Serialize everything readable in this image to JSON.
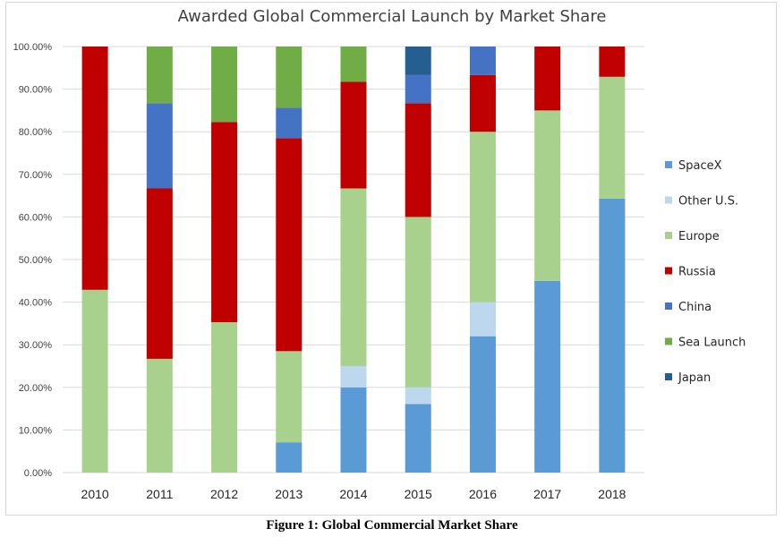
{
  "caption": "Figure 1: Global Commercial Market Share",
  "chart_data": {
    "type": "bar",
    "stacked": true,
    "title": "Awarded Global Commercial Launch by Market Share",
    "xlabel": "",
    "ylabel": "",
    "ylim": [
      0,
      100
    ],
    "y_ticks": [
      "0.00%",
      "10.00%",
      "20.00%",
      "30.00%",
      "40.00%",
      "50.00%",
      "60.00%",
      "70.00%",
      "80.00%",
      "90.00%",
      "100.00%"
    ],
    "grid": true,
    "legend_position": "right",
    "categories": [
      "2010",
      "2011",
      "2012",
      "2013",
      "2014",
      "2015",
      "2016",
      "2017",
      "2018"
    ],
    "series": [
      {
        "name": "SpaceX",
        "color": "#5b9bd5",
        "values": [
          0,
          0,
          0,
          7.1,
          20,
          16.1,
          32,
          45,
          64.3
        ]
      },
      {
        "name": "Other U.S.",
        "color": "#bdd7ee",
        "values": [
          0,
          0,
          0,
          0,
          5,
          3.9,
          8,
          0,
          0
        ]
      },
      {
        "name": "Europe",
        "color": "#a9d18e",
        "values": [
          42.9,
          26.7,
          35.3,
          21.4,
          41.7,
          40,
          40,
          40,
          28.6
        ]
      },
      {
        "name": "Russia",
        "color": "#c00000",
        "values": [
          57.1,
          40,
          47,
          50,
          25,
          26.7,
          13.3,
          15,
          7.1
        ]
      },
      {
        "name": "China",
        "color": "#4472c4",
        "values": [
          0,
          20,
          0,
          7.1,
          0,
          6.6,
          6.7,
          0,
          0
        ]
      },
      {
        "name": "Sea Launch",
        "color": "#70ad47",
        "values": [
          0,
          13.3,
          17.7,
          14.4,
          8.3,
          0,
          0,
          0,
          0
        ]
      },
      {
        "name": "Japan",
        "color": "#255e91",
        "values": [
          0,
          0,
          0,
          0,
          0,
          6.7,
          0,
          0,
          0
        ]
      }
    ]
  }
}
